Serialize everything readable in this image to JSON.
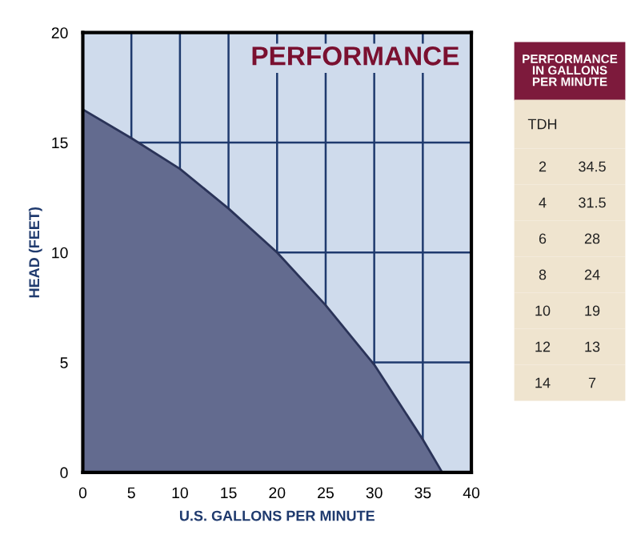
{
  "chart_data": {
    "type": "area",
    "title": "PERFORMANCE",
    "xlabel": "U.S. GALLONS PER MINUTE",
    "ylabel": "HEAD (FEET)",
    "x": [
      0,
      5,
      10,
      15,
      20,
      25,
      30,
      35,
      37
    ],
    "series": [
      {
        "color": "#636b8f",
        "values": [
          16.5,
          15.2,
          13.8,
          12.0,
          10.0,
          7.6,
          4.9,
          1.5,
          0
        ]
      }
    ],
    "xlim": [
      0,
      40
    ],
    "xticks": [
      0,
      5,
      10,
      15,
      20,
      25,
      30,
      35,
      40
    ],
    "ylim": [
      0,
      20
    ],
    "yticks": [
      0,
      5,
      10,
      15,
      20
    ],
    "grid": true,
    "annotations": [
      "PERFORMANCE IN GALLONS PER MINUTE",
      "TDH",
      "2",
      "34.5",
      "4",
      "31.5",
      "6",
      "28",
      "8",
      "24",
      "10",
      "19",
      "12",
      "13",
      "14",
      "7"
    ]
  }
}
